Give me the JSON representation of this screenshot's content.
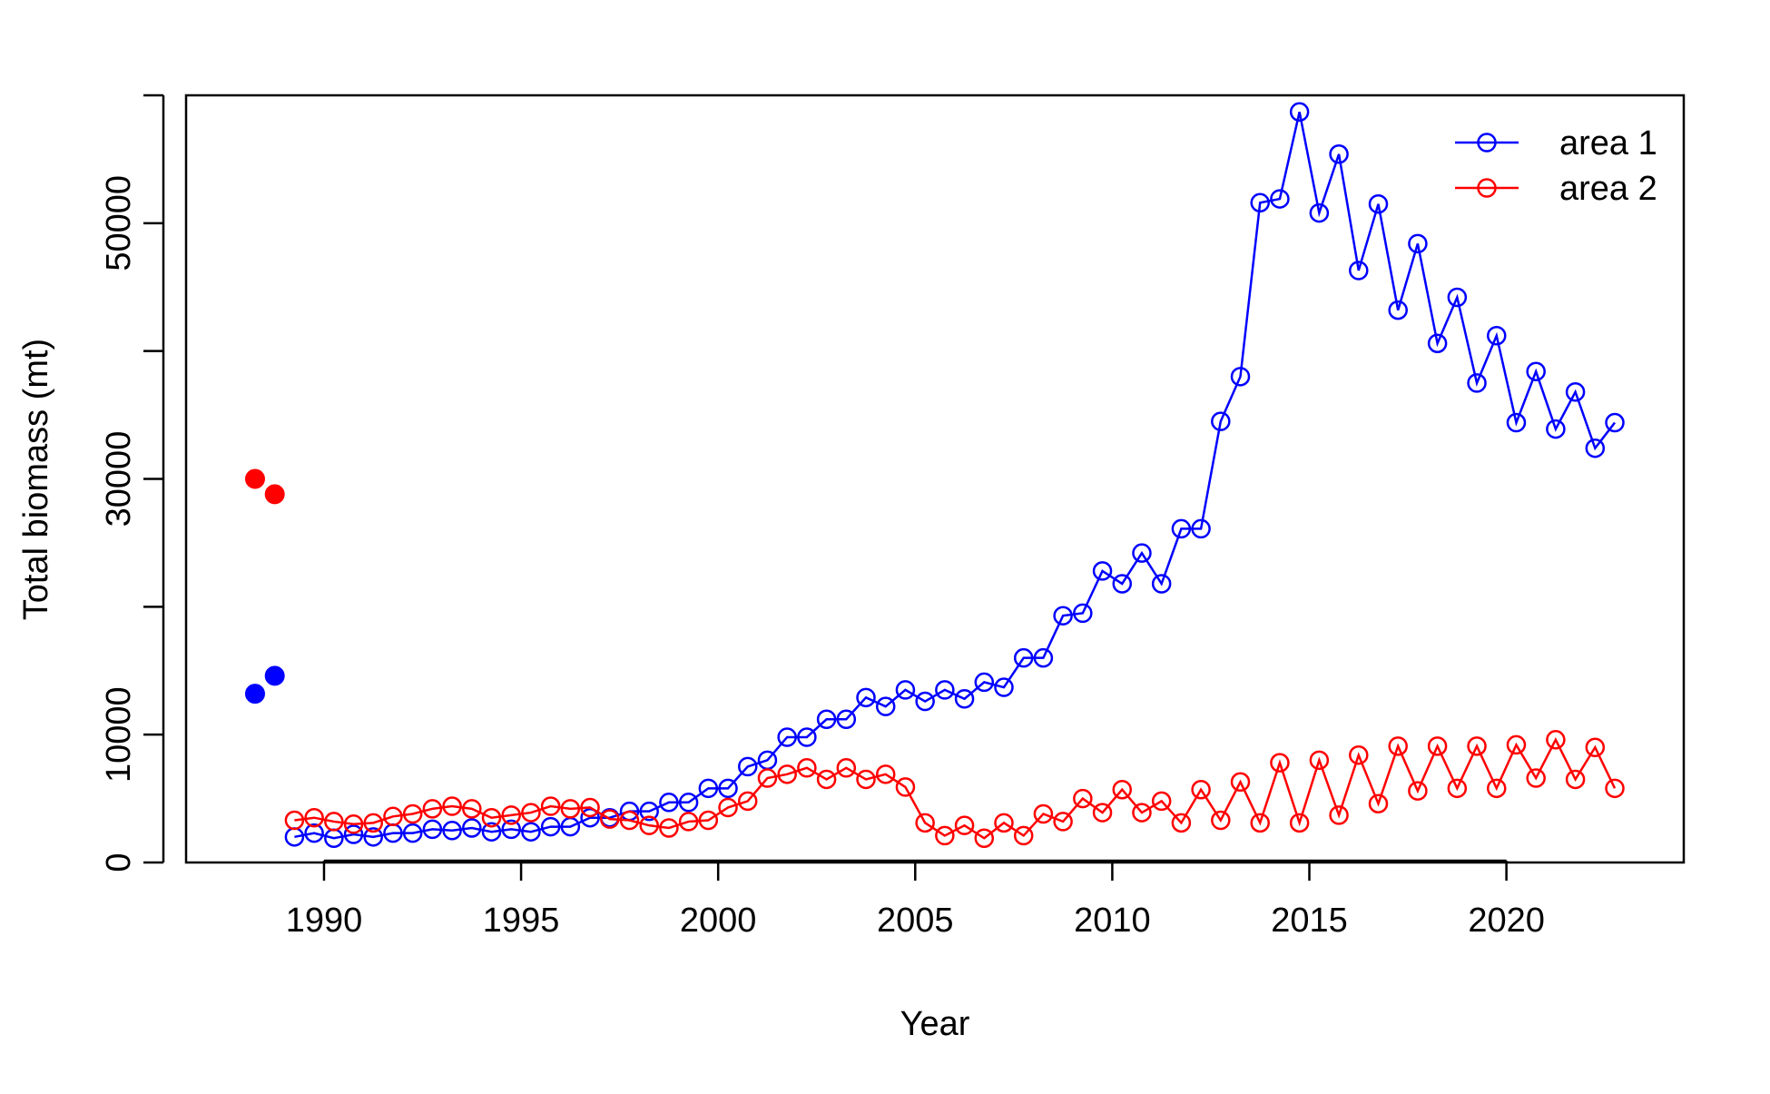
{
  "chart_data": {
    "type": "line",
    "title": "",
    "xlabel": "Year",
    "ylabel": "Total biomass (mt)",
    "xlim": [
      1986.5,
      2024.5
    ],
    "ylim": [
      0,
      60000
    ],
    "x_ticks": [
      1990,
      1995,
      2000,
      2005,
      2010,
      2015,
      2020
    ],
    "x_tick_labels": [
      "1990",
      "1995",
      "2000",
      "2005",
      "2010",
      "2015",
      "2020"
    ],
    "y_ticks": [
      0,
      10000,
      20000,
      30000,
      40000,
      50000,
      60000
    ],
    "y_tick_labels": [
      "0",
      "10000",
      "",
      "30000",
      "",
      "50000",
      ""
    ],
    "grid": false,
    "legend_position": "top-right",
    "series": [
      {
        "name": "area 1",
        "color": "#0000FF",
        "marker": "open-circle",
        "x": [
          1989.25,
          1989.75,
          1990.25,
          1990.75,
          1991.25,
          1991.75,
          1992.25,
          1992.75,
          1993.25,
          1993.75,
          1994.25,
          1994.75,
          1995.25,
          1995.75,
          1996.25,
          1996.75,
          1997.25,
          1997.75,
          1998.25,
          1998.75,
          1999.25,
          1999.75,
          2000.25,
          2000.75,
          2001.25,
          2001.75,
          2002.25,
          2002.75,
          2003.25,
          2003.75,
          2004.25,
          2004.75,
          2005.25,
          2005.75,
          2006.25,
          2006.75,
          2007.25,
          2007.75,
          2008.25,
          2008.75,
          2009.25,
          2009.75,
          2010.25,
          2010.75,
          2011.25,
          2011.75,
          2012.25,
          2012.75,
          2013.25,
          2013.75,
          2014.25,
          2014.75,
          2015.25,
          2015.75,
          2016.25,
          2016.75,
          2017.25,
          2017.75,
          2018.25,
          2018.75,
          2019.25,
          2019.75,
          2020.25,
          2020.75,
          2021.25,
          2021.75,
          2022.25,
          2022.75
        ],
        "y": [
          2000,
          2300,
          1900,
          2200,
          2000,
          2300,
          2300,
          2600,
          2500,
          2700,
          2400,
          2600,
          2400,
          2800,
          2800,
          3500,
          3500,
          4000,
          4000,
          4700,
          4700,
          5800,
          5800,
          7500,
          8000,
          9800,
          9800,
          11200,
          11200,
          12900,
          12200,
          13500,
          12600,
          13500,
          12800,
          14100,
          13700,
          16000,
          16000,
          19300,
          19500,
          22800,
          21800,
          24200,
          21800,
          26100,
          26100,
          34500,
          38000,
          51600,
          51900,
          58700,
          50800,
          55400,
          46300,
          51500,
          43200,
          48400,
          40600,
          44200,
          37500,
          41200,
          34400,
          38400,
          33900,
          36800,
          32400,
          34400
        ]
      },
      {
        "name": "area 2",
        "color": "#FF0000",
        "marker": "open-circle",
        "x": [
          1989.25,
          1989.75,
          1990.25,
          1990.75,
          1991.25,
          1991.75,
          1992.25,
          1992.75,
          1993.25,
          1993.75,
          1994.25,
          1994.75,
          1995.25,
          1995.75,
          1996.25,
          1996.75,
          1997.25,
          1997.75,
          1998.25,
          1998.75,
          1999.25,
          1999.75,
          2000.25,
          2000.75,
          2001.25,
          2001.75,
          2002.25,
          2002.75,
          2003.25,
          2003.75,
          2004.25,
          2004.75,
          2005.25,
          2005.75,
          2006.25,
          2006.75,
          2007.25,
          2007.75,
          2008.25,
          2008.75,
          2009.25,
          2009.75,
          2010.25,
          2010.75,
          2011.25,
          2011.75,
          2012.25,
          2012.75,
          2013.25,
          2013.75,
          2014.25,
          2014.75,
          2015.25,
          2015.75,
          2016.25,
          2016.75,
          2017.25,
          2017.75,
          2018.25,
          2018.75,
          2019.25,
          2019.75,
          2020.25,
          2020.75,
          2021.25,
          2021.75,
          2022.25,
          2022.75
        ],
        "y": [
          3300,
          3500,
          3200,
          3000,
          3100,
          3600,
          3800,
          4200,
          4400,
          4200,
          3500,
          3700,
          3900,
          4400,
          4200,
          4300,
          3400,
          3300,
          2900,
          2700,
          3200,
          3300,
          4300,
          4800,
          6600,
          6900,
          7400,
          6500,
          7400,
          6500,
          6900,
          5900,
          3100,
          2100,
          2900,
          1900,
          3100,
          2100,
          3800,
          3200,
          5000,
          3900,
          5700,
          3900,
          4800,
          3100,
          5700,
          3300,
          6300,
          3100,
          7800,
          3100,
          8000,
          3700,
          8400,
          4600,
          9100,
          5600,
          9100,
          5800,
          9100,
          5800,
          9200,
          6600,
          9600,
          6500,
          9000,
          5800
        ]
      }
    ],
    "extra_points": [
      {
        "color": "#0000FF",
        "marker": "filled-circle",
        "x": [
          1988.25,
          1988.75
        ],
        "y": [
          13200,
          14600
        ]
      },
      {
        "color": "#FF0000",
        "marker": "filled-circle",
        "x": [
          1988.25,
          1988.75
        ],
        "y": [
          30000,
          28800
        ]
      }
    ]
  }
}
